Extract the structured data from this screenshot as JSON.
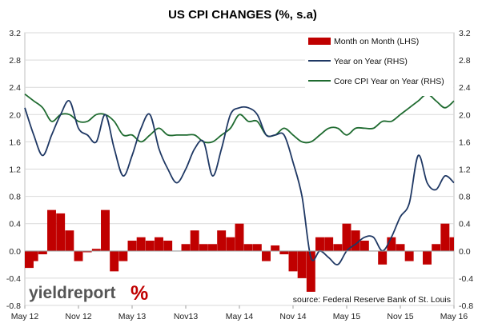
{
  "chart_data": {
    "type": "bar+line",
    "title": "US CPI CHANGES (%, s.a)",
    "x_tick_labels": [
      "May 12",
      "Nov 12",
      "May 13",
      "Nov13",
      "May 14",
      "Nov 14",
      "May 15",
      "Nov 15",
      "May 16"
    ],
    "x_tick_months": [
      "2012-05",
      "2012-11",
      "2013-05",
      "2013-11",
      "2014-05",
      "2014-11",
      "2015-05",
      "2015-11",
      "2016-05"
    ],
    "x_range": [
      "2012-05",
      "2016-05"
    ],
    "y_left": {
      "range": [
        -0.8,
        3.2
      ],
      "ticks": [
        "3.2",
        "2.8",
        "2.4",
        "2.0",
        "1.6",
        "1.2",
        "0.8",
        "0.4",
        "0.0",
        "-0.4",
        "-0.8"
      ]
    },
    "y_right": {
      "range": [
        -0.8,
        3.2
      ],
      "ticks": [
        "3.2",
        "2.8",
        "2.4",
        "2.0",
        "1.6",
        "1.2",
        "0.8",
        "0.4",
        "0.0",
        "-0.4",
        "-0.8"
      ]
    },
    "grid": true,
    "legend_position": "top-right",
    "colors": {
      "mom": "#c00000",
      "yoy": "#1f3864",
      "core": "#1f6b30",
      "grid": "#d9d9d9"
    },
    "series": [
      {
        "name": "Month on Month (LHS)",
        "kind": "bar",
        "axis": "left",
        "months": [
          "2012-05",
          "2012-06",
          "2012-07",
          "2012-08",
          "2012-09",
          "2012-10",
          "2012-11",
          "2012-12",
          "2013-01",
          "2013-02",
          "2013-03",
          "2013-04",
          "2013-05",
          "2013-06",
          "2013-07",
          "2013-08",
          "2013-09",
          "2013-10",
          "2013-11",
          "2013-12",
          "2014-01",
          "2014-02",
          "2014-03",
          "2014-04",
          "2014-05",
          "2014-06",
          "2014-07",
          "2014-08",
          "2014-09",
          "2014-10",
          "2014-11",
          "2014-12",
          "2015-01",
          "2015-02",
          "2015-03",
          "2015-04",
          "2015-05",
          "2015-06",
          "2015-07",
          "2015-08",
          "2015-09",
          "2015-10",
          "2015-11",
          "2015-12",
          "2016-01",
          "2016-02",
          "2016-03",
          "2016-04",
          "2016-05"
        ],
        "values": [
          -0.25,
          -0.15,
          -0.05,
          0.6,
          0.55,
          0.3,
          -0.15,
          -0.02,
          0.03,
          0.6,
          -0.3,
          -0.15,
          0.15,
          0.2,
          0.15,
          0.2,
          0.15,
          0.0,
          0.1,
          0.3,
          0.1,
          0.1,
          0.3,
          0.2,
          0.4,
          0.1,
          0.1,
          -0.15,
          0.08,
          -0.05,
          -0.3,
          -0.4,
          -0.6,
          0.2,
          0.2,
          0.1,
          0.4,
          0.3,
          0.15,
          0.0,
          -0.2,
          0.2,
          0.1,
          -0.15,
          0.0,
          -0.2,
          0.1,
          0.4,
          0.2
        ]
      },
      {
        "name": "Year on Year (RHS)",
        "kind": "line",
        "axis": "right",
        "months": [
          "2012-05",
          "2012-06",
          "2012-07",
          "2012-08",
          "2012-09",
          "2012-10",
          "2012-11",
          "2012-12",
          "2013-01",
          "2013-02",
          "2013-03",
          "2013-04",
          "2013-05",
          "2013-06",
          "2013-07",
          "2013-08",
          "2013-09",
          "2013-10",
          "2013-11",
          "2013-12",
          "2014-01",
          "2014-02",
          "2014-03",
          "2014-04",
          "2014-05",
          "2014-06",
          "2014-07",
          "2014-08",
          "2014-09",
          "2014-10",
          "2014-11",
          "2014-12",
          "2015-01",
          "2015-02",
          "2015-03",
          "2015-04",
          "2015-05",
          "2015-06",
          "2015-07",
          "2015-08",
          "2015-09",
          "2015-10",
          "2015-11",
          "2015-12",
          "2016-01",
          "2016-02",
          "2016-03",
          "2016-04",
          "2016-05"
        ],
        "values": [
          2.1,
          1.7,
          1.4,
          1.7,
          2.0,
          2.2,
          1.8,
          1.7,
          1.6,
          2.0,
          1.5,
          1.1,
          1.4,
          1.8,
          2.0,
          1.5,
          1.2,
          1.0,
          1.2,
          1.5,
          1.6,
          1.1,
          1.5,
          2.0,
          2.1,
          2.1,
          2.0,
          1.7,
          1.7,
          1.7,
          1.3,
          0.8,
          -0.1,
          0.0,
          -0.1,
          -0.2,
          0.0,
          0.1,
          0.2,
          0.2,
          0.0,
          0.2,
          0.5,
          0.7,
          1.4,
          1.0,
          0.9,
          1.1,
          1.0
        ]
      },
      {
        "name": "Core CPI Year on Year (RHS)",
        "kind": "line",
        "axis": "right",
        "months": [
          "2012-05",
          "2012-06",
          "2012-07",
          "2012-08",
          "2012-09",
          "2012-10",
          "2012-11",
          "2012-12",
          "2013-01",
          "2013-02",
          "2013-03",
          "2013-04",
          "2013-05",
          "2013-06",
          "2013-07",
          "2013-08",
          "2013-09",
          "2013-10",
          "2013-11",
          "2013-12",
          "2014-01",
          "2014-02",
          "2014-03",
          "2014-04",
          "2014-05",
          "2014-06",
          "2014-07",
          "2014-08",
          "2014-09",
          "2014-10",
          "2014-11",
          "2014-12",
          "2015-01",
          "2015-02",
          "2015-03",
          "2015-04",
          "2015-05",
          "2015-06",
          "2015-07",
          "2015-08",
          "2015-09",
          "2015-10",
          "2015-11",
          "2015-12",
          "2016-01",
          "2016-02",
          "2016-03",
          "2016-04",
          "2016-05"
        ],
        "values": [
          2.3,
          2.2,
          2.1,
          1.9,
          2.0,
          2.0,
          1.9,
          1.9,
          2.0,
          2.0,
          1.9,
          1.7,
          1.7,
          1.6,
          1.7,
          1.8,
          1.7,
          1.7,
          1.7,
          1.7,
          1.6,
          1.6,
          1.7,
          1.8,
          2.0,
          1.9,
          1.9,
          1.7,
          1.7,
          1.8,
          1.7,
          1.6,
          1.6,
          1.7,
          1.8,
          1.8,
          1.7,
          1.8,
          1.8,
          1.8,
          1.9,
          1.9,
          2.0,
          2.1,
          2.2,
          2.3,
          2.2,
          2.1,
          2.2
        ]
      }
    ]
  },
  "watermark": {
    "brand": "yieldreport",
    "symbol": "%"
  },
  "source": "source: Federal Reserve Bank of St. Louis"
}
